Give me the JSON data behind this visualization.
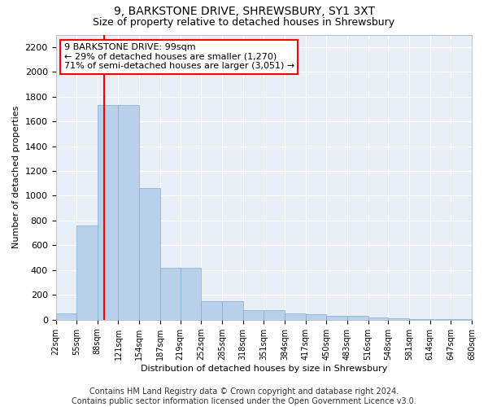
{
  "title": "9, BARKSTONE DRIVE, SHREWSBURY, SY1 3XT",
  "subtitle": "Size of property relative to detached houses in Shrewsbury",
  "xlabel": "Distribution of detached houses by size in Shrewsbury",
  "ylabel": "Number of detached properties",
  "bar_color": "#b8d0ea",
  "bar_edge_color": "#7bafd4",
  "background_color": "#e8eef6",
  "grid_color": "#ffffff",
  "bin_edges": [
    22,
    55,
    88,
    121,
    154,
    187,
    219,
    252,
    285,
    318,
    351,
    384,
    417,
    450,
    483,
    516,
    548,
    581,
    614,
    647,
    680
  ],
  "bar_heights": [
    50,
    760,
    1730,
    1730,
    1060,
    420,
    420,
    150,
    150,
    80,
    80,
    50,
    45,
    30,
    30,
    20,
    10,
    5,
    2,
    2
  ],
  "property_size": 99,
  "annotation_line1": "9 BARKSTONE DRIVE: 99sqm",
  "annotation_line2": "← 29% of detached houses are smaller (1,270)",
  "annotation_line3": "71% of semi-detached houses are larger (3,051) →",
  "annotation_box_color": "white",
  "annotation_box_edge_color": "red",
  "vline_color": "red",
  "ylim": [
    0,
    2300
  ],
  "yticks": [
    0,
    200,
    400,
    600,
    800,
    1000,
    1200,
    1400,
    1600,
    1800,
    2000,
    2200
  ],
  "tick_labels": [
    "22sqm",
    "55sqm",
    "88sqm",
    "121sqm",
    "154sqm",
    "187sqm",
    "219sqm",
    "252sqm",
    "285sqm",
    "318sqm",
    "351sqm",
    "384sqm",
    "417sqm",
    "450sqm",
    "483sqm",
    "516sqm",
    "548sqm",
    "581sqm",
    "614sqm",
    "647sqm",
    "680sqm"
  ],
  "footer_text": "Contains HM Land Registry data © Crown copyright and database right 2024.\nContains public sector information licensed under the Open Government Licence v3.0.",
  "title_fontsize": 10,
  "subtitle_fontsize": 9,
  "ylabel_fontsize": 8,
  "xlabel_fontsize": 8,
  "footer_fontsize": 7,
  "tick_fontsize": 7,
  "ytick_fontsize": 8,
  "annotation_fontsize": 8
}
